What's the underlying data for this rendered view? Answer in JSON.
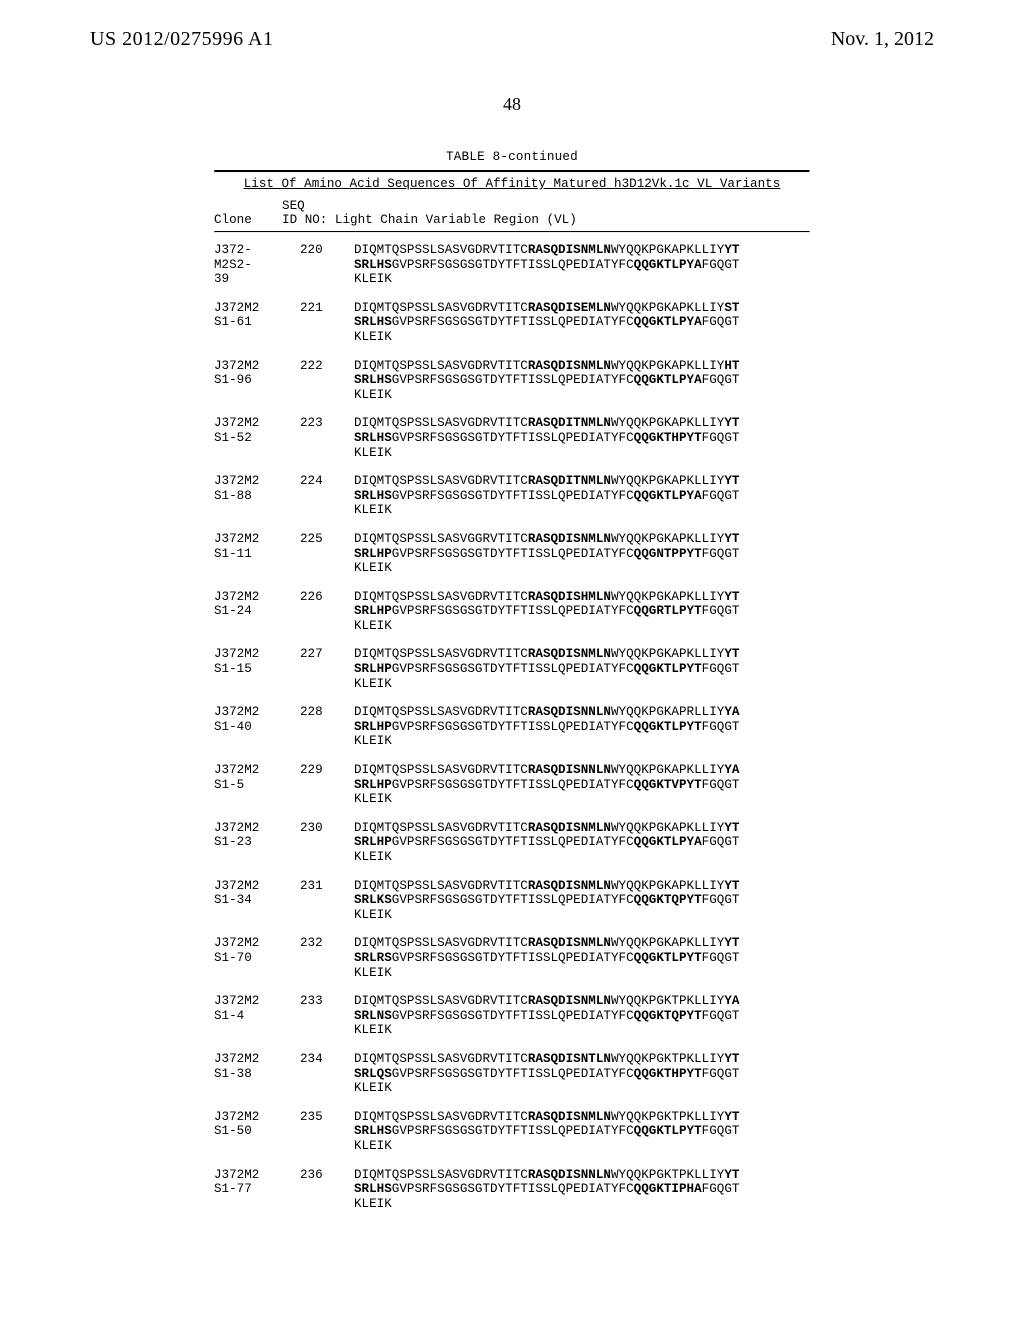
{
  "header": {
    "left": "US 2012/0275996 A1",
    "right": "Nov. 1, 2012",
    "page_number": "48"
  },
  "table": {
    "title": "TABLE 8-continued",
    "list_header": "List Of Amino Acid Sequences Of Affinity Matured h3D12Vk.1c VL Variants",
    "col_hdr_line1": "         SEQ",
    "col_hdr_line2": "Clone    ID NO: Light Chain Variable Region (VL)"
  },
  "entries": [
    {
      "clone": "J372-\nM2S2-\n39",
      "seq": "220",
      "lines": [
        {
          "segs": [
            {
              "t": "DIQMTQSPSSLSASVGDRVTITC"
            },
            {
              "t": "RASQDISNMLN",
              "b": true
            },
            {
              "t": "WYQQKPGKAPKLLIY"
            },
            {
              "t": "YT",
              "b": true
            }
          ]
        },
        {
          "segs": [
            {
              "t": "SRLHS",
              "b": true
            },
            {
              "t": "GVPSRFSGSGSGTDYTFTISSLQPEDIATYFC"
            },
            {
              "t": "QQGKTLPYA",
              "b": true
            },
            {
              "t": "FGQGT"
            }
          ]
        },
        {
          "segs": [
            {
              "t": "KLEIK"
            }
          ]
        }
      ]
    },
    {
      "clone": "J372M2\nS1-61",
      "seq": "221",
      "lines": [
        {
          "segs": [
            {
              "t": "DIQMTQSPSSLSASVGDRVTITC"
            },
            {
              "t": "RASQDISEMLN",
              "b": true
            },
            {
              "t": "WYQQKPGKAPKLLIY"
            },
            {
              "t": "ST",
              "b": true
            }
          ]
        },
        {
          "segs": [
            {
              "t": "SRLHS",
              "b": true
            },
            {
              "t": "GVPSRFSGSGSGTDYTFTISSLQPEDIATYFC"
            },
            {
              "t": "QQGKTLPYA",
              "b": true
            },
            {
              "t": "FGQGT"
            }
          ]
        },
        {
          "segs": [
            {
              "t": "KLEIK"
            }
          ]
        }
      ]
    },
    {
      "clone": "J372M2\nS1-96",
      "seq": "222",
      "lines": [
        {
          "segs": [
            {
              "t": "DIQMTQSPSSLSASVGDRVTITC"
            },
            {
              "t": "RASQDISNMLN",
              "b": true
            },
            {
              "t": "WYQQKPGKAPKLLIY"
            },
            {
              "t": "HT",
              "b": true
            }
          ]
        },
        {
          "segs": [
            {
              "t": "SRLHS",
              "b": true
            },
            {
              "t": "GVPSRFSGSGSGTDYTFTISSLQPEDIATYFC"
            },
            {
              "t": "QQGKTLPYA",
              "b": true
            },
            {
              "t": "FGQGT"
            }
          ]
        },
        {
          "segs": [
            {
              "t": "KLEIK"
            }
          ]
        }
      ]
    },
    {
      "clone": "J372M2\nS1-52",
      "seq": "223",
      "lines": [
        {
          "segs": [
            {
              "t": "DIQMTQSPSSLSASVGDRVTITC"
            },
            {
              "t": "RASQDITNMLN",
              "b": true
            },
            {
              "t": "WYQQKPGKAPKLLIY"
            },
            {
              "t": "YT",
              "b": true
            }
          ]
        },
        {
          "segs": [
            {
              "t": "SRLHS",
              "b": true
            },
            {
              "t": "GVPSRFSGSGSGTDYTFTISSLQPEDIATYFC"
            },
            {
              "t": "QQGKTHPYT",
              "b": true
            },
            {
              "t": "FGQGT"
            }
          ]
        },
        {
          "segs": [
            {
              "t": "KLEIK"
            }
          ]
        }
      ]
    },
    {
      "clone": "J372M2\nS1-88",
      "seq": "224",
      "lines": [
        {
          "segs": [
            {
              "t": "DIQMTQSPSSLSASVGDRVTITC"
            },
            {
              "t": "RASQDITNMLN",
              "b": true
            },
            {
              "t": "WYQQKPGKAPKLLIY"
            },
            {
              "t": "YT",
              "b": true
            }
          ]
        },
        {
          "segs": [
            {
              "t": "SRLHS",
              "b": true
            },
            {
              "t": "GVPSRFSGSGSGTDYTFTISSLQPEDIATYFC"
            },
            {
              "t": "QQGKTLPYA",
              "b": true
            },
            {
              "t": "FGQGT"
            }
          ]
        },
        {
          "segs": [
            {
              "t": "KLEIK"
            }
          ]
        }
      ]
    },
    {
      "clone": "J372M2\nS1-11",
      "seq": "225",
      "lines": [
        {
          "segs": [
            {
              "t": "DIQMTQSPSSLSASVGGRVTITC"
            },
            {
              "t": "RASQDISNMLN",
              "b": true
            },
            {
              "t": "WYQQKPGKAPKLLIY"
            },
            {
              "t": "YT",
              "b": true
            }
          ]
        },
        {
          "segs": [
            {
              "t": "SRLHP",
              "b": true
            },
            {
              "t": "GVPSRFSGSGSGTDYTFTISSLQPEDIATYFC"
            },
            {
              "t": "QQGNTPPYT",
              "b": true
            },
            {
              "t": "FGQGT"
            }
          ]
        },
        {
          "segs": [
            {
              "t": "KLEIK"
            }
          ]
        }
      ]
    },
    {
      "clone": "J372M2\nS1-24",
      "seq": "226",
      "lines": [
        {
          "segs": [
            {
              "t": "DIQMTQSPSSLSASVGDRVTITC"
            },
            {
              "t": "RASQDISHMLN",
              "b": true
            },
            {
              "t": "WYQQKPGKAPKLLIY"
            },
            {
              "t": "YT",
              "b": true
            }
          ]
        },
        {
          "segs": [
            {
              "t": "SRLHP",
              "b": true
            },
            {
              "t": "GVPSRFSGSGSGTDYTFTISSLQPEDIATYFC"
            },
            {
              "t": "QQGRTLPYT",
              "b": true
            },
            {
              "t": "FGQGT"
            }
          ]
        },
        {
          "segs": [
            {
              "t": "KLEIK"
            }
          ]
        }
      ]
    },
    {
      "clone": "J372M2\nS1-15",
      "seq": "227",
      "lines": [
        {
          "segs": [
            {
              "t": "DIQMTQSPSSLSASVGDRVTITC"
            },
            {
              "t": "RASQDISNMLN",
              "b": true
            },
            {
              "t": "WYQQKPGKAPKLLIY"
            },
            {
              "t": "YT",
              "b": true
            }
          ]
        },
        {
          "segs": [
            {
              "t": "SRLHP",
              "b": true
            },
            {
              "t": "GVPSRFSGSGSGTDYTFTISSLQPEDIATYFC"
            },
            {
              "t": "QQGKTLPYT",
              "b": true
            },
            {
              "t": "FGQGT"
            }
          ]
        },
        {
          "segs": [
            {
              "t": "KLEIK"
            }
          ]
        }
      ]
    },
    {
      "clone": "J372M2\nS1-40",
      "seq": "228",
      "lines": [
        {
          "segs": [
            {
              "t": "DIQMTQSPSSLSASVGDRVTITC"
            },
            {
              "t": "RASQDISNNLN",
              "b": true
            },
            {
              "t": "WYQQKPGKAPRLLIY"
            },
            {
              "t": "YA",
              "b": true
            }
          ]
        },
        {
          "segs": [
            {
              "t": "SRLHP",
              "b": true
            },
            {
              "t": "GVPSRFSGSGSGTDYTFTISSLQPEDIATYFC"
            },
            {
              "t": "QQGKTLPYT",
              "b": true
            },
            {
              "t": "FGQGT"
            }
          ]
        },
        {
          "segs": [
            {
              "t": "KLEIK"
            }
          ]
        }
      ]
    },
    {
      "clone": "J372M2\nS1-5",
      "seq": "229",
      "lines": [
        {
          "segs": [
            {
              "t": "DIQMTQSPSSLSASVGDRVTITC"
            },
            {
              "t": "RASQDISNNLN",
              "b": true
            },
            {
              "t": "WYQQKPGKAPKLLIY"
            },
            {
              "t": "YA",
              "b": true
            }
          ]
        },
        {
          "segs": [
            {
              "t": "SRLHP",
              "b": true
            },
            {
              "t": "GVPSRFSGSGSGTDYTFTISSLQPEDIATYFC"
            },
            {
              "t": "QQGKTVPYT",
              "b": true
            },
            {
              "t": "FGQGT"
            }
          ]
        },
        {
          "segs": [
            {
              "t": "KLEIK"
            }
          ]
        }
      ]
    },
    {
      "clone": "J372M2\nS1-23",
      "seq": "230",
      "lines": [
        {
          "segs": [
            {
              "t": "DIQMTQSPSSLSASVGDRVTITC"
            },
            {
              "t": "RASQDISNMLN",
              "b": true
            },
            {
              "t": "WYQQKPGKAPKLLIY"
            },
            {
              "t": "YT",
              "b": true
            }
          ]
        },
        {
          "segs": [
            {
              "t": "SRLHP",
              "b": true
            },
            {
              "t": "GVPSRFSGSGSGTDYTFTISSLQPEDIATYFC"
            },
            {
              "t": "QQGKTLPYA",
              "b": true
            },
            {
              "t": "FGQGT"
            }
          ]
        },
        {
          "segs": [
            {
              "t": "KLEIK"
            }
          ]
        }
      ]
    },
    {
      "clone": "J372M2\nS1-34",
      "seq": "231",
      "lines": [
        {
          "segs": [
            {
              "t": "DIQMTQSPSSLSASVGDRVTITC"
            },
            {
              "t": "RASQDISNMLN",
              "b": true
            },
            {
              "t": "WYQQKPGKAPKLLIY"
            },
            {
              "t": "YT",
              "b": true
            }
          ]
        },
        {
          "segs": [
            {
              "t": "SRLKS",
              "b": true
            },
            {
              "t": "GVPSRFSGSGSGTDYTFTISSLQPEDIATYFC"
            },
            {
              "t": "QQGKTQPYT",
              "b": true
            },
            {
              "t": "FGQGT"
            }
          ]
        },
        {
          "segs": [
            {
              "t": "KLEIK"
            }
          ]
        }
      ]
    },
    {
      "clone": "J372M2\nS1-70",
      "seq": "232",
      "lines": [
        {
          "segs": [
            {
              "t": "DIQMTQSPSSLSASVGDRVTITC"
            },
            {
              "t": "RASQDISNMLN",
              "b": true
            },
            {
              "t": "WYQQKPGKAPKLLIY"
            },
            {
              "t": "YT",
              "b": true
            }
          ]
        },
        {
          "segs": [
            {
              "t": "SRLRS",
              "b": true
            },
            {
              "t": "GVPSRFSGSGSGTDYTFTISSLQPEDIATYFC"
            },
            {
              "t": "QQGKTLPYT",
              "b": true
            },
            {
              "t": "FGQGT"
            }
          ]
        },
        {
          "segs": [
            {
              "t": "KLEIK"
            }
          ]
        }
      ]
    },
    {
      "clone": "J372M2\nS1-4",
      "seq": "233",
      "lines": [
        {
          "segs": [
            {
              "t": "DIQMTQSPSSLSASVGDRVTITC"
            },
            {
              "t": "RASQDISNMLN",
              "b": true
            },
            {
              "t": "WYQQKPGKTPKLLIY"
            },
            {
              "t": "YA",
              "b": true
            }
          ]
        },
        {
          "segs": [
            {
              "t": "SRLNS",
              "b": true
            },
            {
              "t": "GVPSRFSGSGSGTDYTFTISSLQPEDIATYFC"
            },
            {
              "t": "QQGKTQPYT",
              "b": true
            },
            {
              "t": "FGQGT"
            }
          ]
        },
        {
          "segs": [
            {
              "t": "KLEIK"
            }
          ]
        }
      ]
    },
    {
      "clone": "J372M2\nS1-38",
      "seq": "234",
      "lines": [
        {
          "segs": [
            {
              "t": "DIQMTQSPSSLSASVGDRVTITC"
            },
            {
              "t": "RASQDISNTLN",
              "b": true
            },
            {
              "t": "WYQQKPGKTPKLLIY"
            },
            {
              "t": "YT",
              "b": true
            }
          ]
        },
        {
          "segs": [
            {
              "t": "SRLQS",
              "b": true
            },
            {
              "t": "GVPSRFSGSGSGTDYTFTISSLQPEDIATYFC"
            },
            {
              "t": "QQGKTHPYT",
              "b": true
            },
            {
              "t": "FGQGT"
            }
          ]
        },
        {
          "segs": [
            {
              "t": "KLEIK"
            }
          ]
        }
      ]
    },
    {
      "clone": "J372M2\nS1-50",
      "seq": "235",
      "lines": [
        {
          "segs": [
            {
              "t": "DIQMTQSPSSLSASVGDRVTITC"
            },
            {
              "t": "RASQDISNMLN",
              "b": true
            },
            {
              "t": "WYQQKPGKTPKLLIY"
            },
            {
              "t": "YT",
              "b": true
            }
          ]
        },
        {
          "segs": [
            {
              "t": "SRLHS",
              "b": true
            },
            {
              "t": "GVPSRFSGSGSGTDYTFTISSLQPEDIATYFC"
            },
            {
              "t": "QQGKTLPYT",
              "b": true
            },
            {
              "t": "FGQGT"
            }
          ]
        },
        {
          "segs": [
            {
              "t": "KLEIK"
            }
          ]
        }
      ]
    },
    {
      "clone": "J372M2\nS1-77",
      "seq": "236",
      "lines": [
        {
          "segs": [
            {
              "t": "DIQMTQSPSSLSASVGDRVTITC"
            },
            {
              "t": "RASQDISNNLN",
              "b": true
            },
            {
              "t": "WYQQKPGKTPKLLIY"
            },
            {
              "t": "YT",
              "b": true
            }
          ]
        },
        {
          "segs": [
            {
              "t": "SRLHS",
              "b": true
            },
            {
              "t": "GVPSRFSGSGSGTDYTFTISSLQPEDIATYFC"
            },
            {
              "t": "QQGKTIPHA",
              "b": true
            },
            {
              "t": "FGQGT"
            }
          ]
        },
        {
          "segs": [
            {
              "t": "KLEIK"
            }
          ]
        }
      ]
    }
  ]
}
